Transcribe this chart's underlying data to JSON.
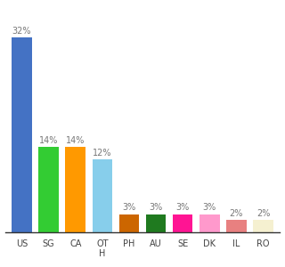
{
  "categories": [
    "US",
    "SG",
    "CA",
    "OT\nH",
    "PH",
    "AU",
    "SE",
    "DK",
    "IL",
    "RO"
  ],
  "values": [
    32,
    14,
    14,
    12,
    3,
    3,
    3,
    3,
    2,
    2
  ],
  "bar_colors": [
    "#4472c4",
    "#33cc33",
    "#ff9900",
    "#87ceeb",
    "#cc6600",
    "#1f7a1f",
    "#ff1493",
    "#ff99cc",
    "#e88080",
    "#f5f0d0"
  ],
  "background_color": "#ffffff",
  "label_fontsize": 7.0,
  "tick_fontsize": 7.0,
  "bar_width": 0.75,
  "ylim": [
    0,
    36
  ],
  "label_color": "#777777"
}
